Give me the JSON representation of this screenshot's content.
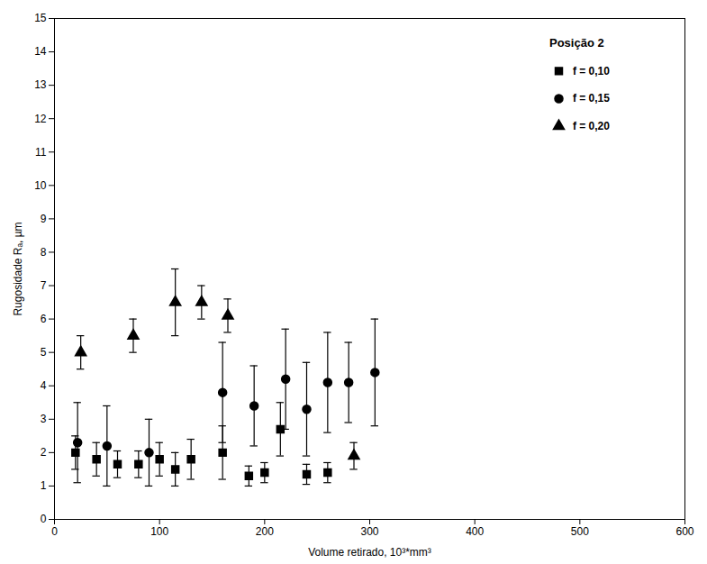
{
  "chart_data": {
    "type": "scatter",
    "xlabel": "Volume retirado, 10³*mm³",
    "ylabel": "Rugosidade Rₐ, µm",
    "legend_title": "Posição 2",
    "xlim": [
      0,
      600
    ],
    "ylim": [
      0,
      15
    ],
    "xticks": [
      0,
      100,
      200,
      300,
      400,
      500,
      600
    ],
    "yticks": [
      0,
      1,
      2,
      3,
      4,
      5,
      6,
      7,
      8,
      9,
      10,
      11,
      12,
      13,
      14,
      15
    ],
    "grid": false,
    "legend": "upper right",
    "series": [
      {
        "name": "f = 0,10",
        "marker": "square",
        "x": [
          20,
          40,
          60,
          80,
          100,
          115,
          130,
          160,
          185,
          200,
          215,
          240,
          260
        ],
        "values": [
          2.0,
          1.8,
          1.65,
          1.65,
          1.8,
          1.5,
          1.8,
          2.0,
          1.3,
          1.4,
          2.7,
          1.35,
          1.4
        ],
        "yerr_lo": [
          0.5,
          0.5,
          0.4,
          0.4,
          0.5,
          0.5,
          0.6,
          0.8,
          0.3,
          0.3,
          0.8,
          0.3,
          0.3
        ],
        "yerr_hi": [
          0.5,
          0.5,
          0.4,
          0.4,
          0.5,
          0.5,
          0.6,
          0.8,
          0.3,
          0.3,
          0.8,
          0.3,
          0.3
        ]
      },
      {
        "name": "f = 0,15",
        "marker": "circle",
        "x": [
          22,
          50,
          90,
          160,
          190,
          220,
          240,
          260,
          280,
          305
        ],
        "values": [
          2.3,
          2.2,
          2.0,
          3.8,
          3.4,
          4.2,
          3.3,
          4.1,
          4.1,
          4.4
        ],
        "yerr_lo": [
          1.2,
          1.2,
          1.0,
          1.5,
          1.2,
          1.5,
          1.4,
          1.5,
          1.2,
          1.6
        ],
        "yerr_hi": [
          1.2,
          1.2,
          1.0,
          1.5,
          1.2,
          1.5,
          1.4,
          1.5,
          1.2,
          1.6
        ]
      },
      {
        "name": "f = 0,20",
        "marker": "triangle",
        "x": [
          25,
          75,
          115,
          140,
          165,
          285
        ],
        "values": [
          5.0,
          5.5,
          6.5,
          6.5,
          6.1,
          1.9
        ],
        "yerr_lo": [
          0.5,
          0.5,
          1.0,
          0.5,
          0.5,
          0.4
        ],
        "yerr_hi": [
          0.5,
          0.5,
          1.0,
          0.5,
          0.5,
          0.4
        ]
      }
    ]
  }
}
